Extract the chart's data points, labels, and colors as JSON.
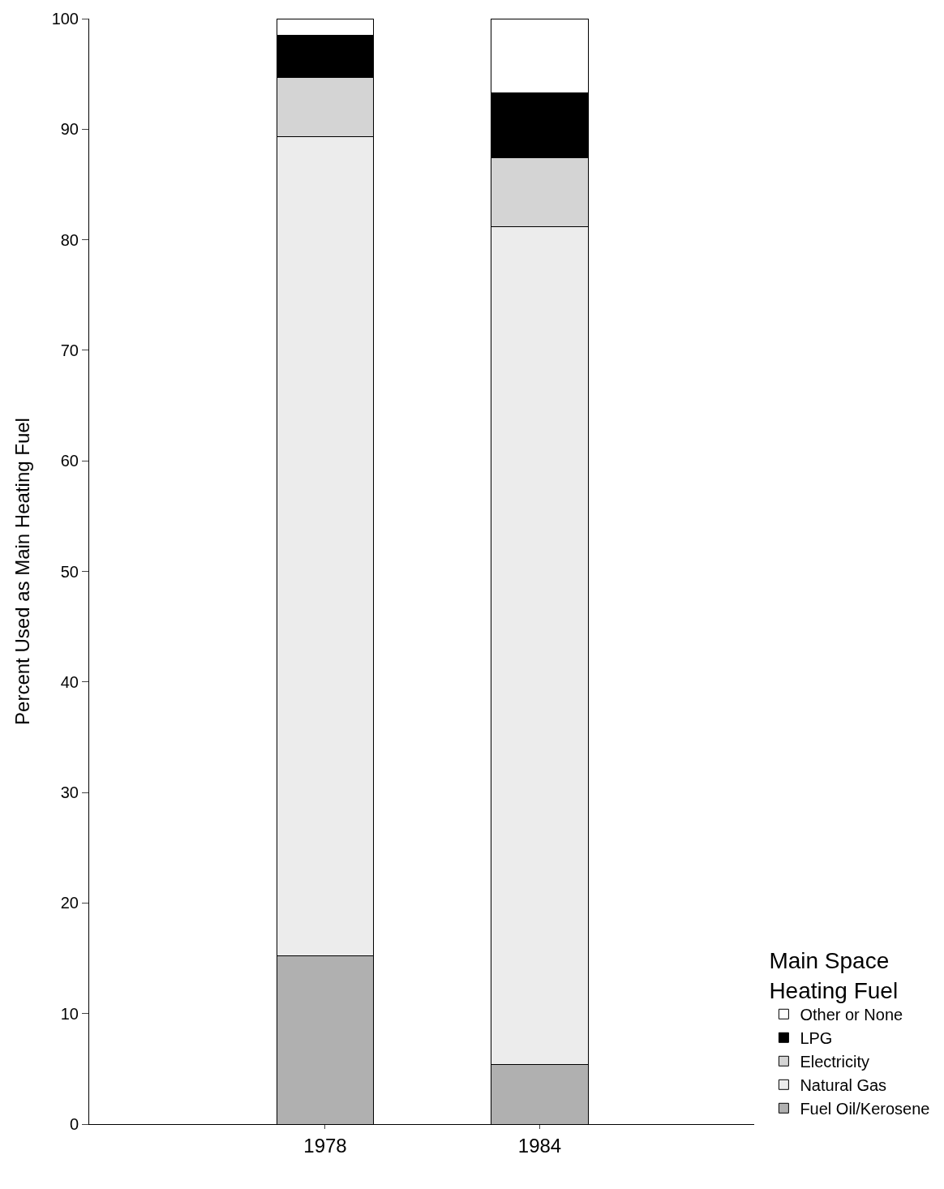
{
  "chart_data": {
    "type": "bar",
    "stacked": true,
    "ylabel": "Percent Used as Main Heating Fuel",
    "legend_title": "Main Space\nHeating Fuel",
    "categories": [
      "1978",
      "1984"
    ],
    "series": [
      {
        "name": "Fuel Oil/Kerosene",
        "color": "#b0b0b0",
        "values": [
          15.2,
          5.4
        ]
      },
      {
        "name": "Natural Gas",
        "color": "#ececec",
        "values": [
          74.1,
          75.8
        ]
      },
      {
        "name": "Electricity",
        "color": "#d4d4d4",
        "values": [
          5.4,
          6.2
        ]
      },
      {
        "name": "LPG",
        "color": "#000000",
        "values": [
          3.8,
          5.9
        ]
      },
      {
        "name": "Other or None",
        "color": "#ffffff",
        "values": [
          1.5,
          6.7
        ]
      }
    ],
    "ylim": [
      0,
      100
    ],
    "yticks": [
      0,
      10,
      20,
      30,
      40,
      50,
      60,
      70,
      80,
      90,
      100
    ],
    "grid": false,
    "legend": "bottom right"
  }
}
